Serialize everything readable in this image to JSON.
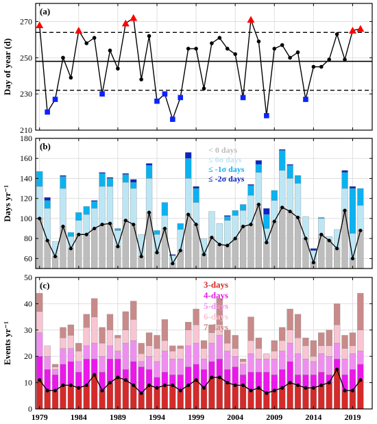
{
  "chart_data": [
    {
      "panel": "(a)",
      "type": "line",
      "ylabel": "Day of year (d)",
      "ylim": [
        210,
        280
      ],
      "yticks": [
        210,
        230,
        250,
        270
      ],
      "xlim": [
        1978.5,
        2021.5
      ],
      "x": [
        1979,
        1980,
        1981,
        1982,
        1983,
        1984,
        1985,
        1986,
        1987,
        1988,
        1989,
        1990,
        1991,
        1992,
        1993,
        1994,
        1995,
        1996,
        1997,
        1998,
        1999,
        2000,
        2001,
        2002,
        2003,
        2004,
        2005,
        2006,
        2007,
        2008,
        2009,
        2010,
        2011,
        2012,
        2013,
        2014,
        2015,
        2016,
        2017,
        2018,
        2019,
        2020
      ],
      "values": [
        268,
        220,
        227,
        250,
        239,
        265,
        258,
        261,
        230,
        254,
        244,
        269,
        272,
        238,
        262,
        226,
        230,
        216,
        228,
        255,
        255,
        233,
        258,
        261,
        255,
        252,
        228,
        271,
        259,
        218,
        255,
        257,
        250,
        253,
        227,
        245,
        245,
        249,
        263,
        249,
        265,
        266
      ],
      "mean": 248,
      "upper_bound": 264,
      "lower_bound": 232,
      "high_marker_years": [
        1979,
        1984,
        1990,
        1991,
        2006,
        2019,
        2020
      ],
      "low_marker_years": [
        1980,
        1981,
        1987,
        1994,
        1995,
        1996,
        1997,
        2005,
        2008,
        2013
      ],
      "colors": {
        "line": "#000000",
        "high": "#ff0000",
        "low": "#0b24fb"
      }
    },
    {
      "panel": "(b)",
      "type": "bar",
      "ylabel": "Days yr⁻¹",
      "ylim": [
        50,
        180
      ],
      "yticks": [
        60,
        80,
        100,
        120,
        140,
        160,
        180
      ],
      "series": [
        {
          "name": "< 0 days",
          "color": "#bdbdbd",
          "values": [
            100,
            78,
            62,
            92,
            70,
            84,
            84,
            90,
            94,
            95,
            72,
            98,
            94,
            62,
            106,
            66,
            90,
            55,
            68,
            104,
            94,
            64,
            81,
            74,
            73,
            80,
            92,
            94,
            114,
            76,
            97,
            111,
            107,
            101,
            80,
            56,
            84,
            78,
            70,
            108,
            60,
            88
          ]
        },
        {
          "name": "≤ 0σ days",
          "color": "#bde6f5",
          "values": [
            132,
            110,
            77,
            130,
            82,
            98,
            104,
            110,
            132,
            132,
            88,
            136,
            130,
            84,
            140,
            84,
            103,
            63,
            89,
            140,
            116,
            80,
            107,
            95,
            98,
            103,
            108,
            123,
            146,
            90,
            118,
            148,
            140,
            135,
            102,
            68,
            100,
            82,
            89,
            130,
            85,
            113
          ]
        },
        {
          "name": "≤ -1σ days",
          "color": "#0bb2f0",
          "values": [
            147,
            118,
            77,
            142,
            86,
            106,
            112,
            117,
            145,
            140,
            90,
            144,
            136,
            84,
            153,
            88,
            116,
            63,
            95,
            160,
            130,
            80,
            107,
            95,
            102,
            108,
            114,
            133,
            154,
            104,
            128,
            168,
            153,
            143,
            102,
            68,
            101,
            82,
            85,
            146,
            130,
            130
          ]
        },
        {
          "name": "≤ -2σ days",
          "color": "#0a23c8",
          "values": [
            147,
            121,
            77,
            143,
            86,
            106,
            112,
            118,
            146,
            141,
            90,
            145,
            139,
            84,
            155,
            88,
            116,
            64,
            95,
            166,
            132,
            80,
            107,
            95,
            103,
            108,
            114,
            134,
            158,
            110,
            128,
            169,
            154,
            143,
            102,
            70,
            101,
            82,
            86,
            148,
            132,
            130
          ]
        }
      ],
      "line_values": [
        100,
        78,
        62,
        92,
        70,
        84,
        84,
        90,
        94,
        95,
        72,
        98,
        94,
        62,
        106,
        66,
        90,
        55,
        68,
        104,
        94,
        64,
        81,
        74,
        73,
        80,
        92,
        94,
        114,
        76,
        97,
        111,
        107,
        101,
        80,
        56,
        84,
        78,
        70,
        108,
        60,
        88
      ],
      "legend": [
        "< 0 days",
        "≤ 0σ days",
        "≤ -1σ days",
        "≤ -2σ days"
      ],
      "legend_placement": "top-center"
    },
    {
      "panel": "(c)",
      "type": "bar",
      "ylabel": "Events yr⁻¹",
      "ylim": [
        0,
        50
      ],
      "yticks": [
        0,
        10,
        20,
        30,
        40,
        50
      ],
      "xticks": [
        "1979",
        "1984",
        "1989",
        "1994",
        "1999",
        "2004",
        "2009",
        "2014",
        "2019"
      ],
      "xtick_years": [
        1979,
        1984,
        1989,
        1994,
        1999,
        2004,
        2009,
        2014,
        2019
      ],
      "series": [
        {
          "name": "3-days",
          "color": "#d42a2a",
          "values": [
            11,
            7,
            7,
            9,
            9,
            8,
            9,
            13,
            7,
            10,
            12,
            11,
            9,
            6,
            9,
            8,
            9,
            9,
            7,
            9,
            11,
            8,
            12,
            12,
            10,
            9,
            9,
            7,
            8,
            6,
            7,
            8,
            10,
            9,
            8,
            8,
            9,
            10,
            15,
            7,
            7,
            11
          ]
        },
        {
          "name": "4-days",
          "color": "#ea18ea",
          "values": [
            20,
            15,
            13,
            17,
            18,
            14,
            19,
            19,
            14,
            19,
            19,
            15,
            18,
            16,
            15,
            12,
            14,
            13,
            13,
            16,
            17,
            15,
            18,
            19,
            15,
            16,
            13,
            14,
            14,
            14,
            13,
            15,
            18,
            13,
            13,
            13,
            14,
            13,
            19,
            13,
            15,
            17
          ]
        },
        {
          "name": "5-days",
          "color": "#f08ef0",
          "values": [
            29,
            20,
            15,
            23,
            23,
            18,
            24,
            25,
            20,
            24,
            22,
            25,
            26,
            18,
            20,
            18,
            22,
            19,
            19,
            24,
            25,
            19,
            25,
            28,
            22,
            20,
            17,
            21,
            19,
            19,
            19,
            22,
            25,
            21,
            19,
            18,
            21,
            20,
            25,
            19,
            21,
            22
          ]
        },
        {
          "name": "6-days",
          "color": "#f8c5d2",
          "values": [
            37,
            24,
            16,
            27,
            28,
            22,
            31,
            35,
            25,
            30,
            27,
            30,
            34,
            21,
            24,
            23,
            26,
            22,
            23,
            30,
            32,
            23,
            29,
            32,
            25,
            23,
            18,
            26,
            23,
            21,
            22,
            26,
            30,
            27,
            24,
            20,
            24,
            24,
            32,
            23,
            24,
            30
          ]
        },
        {
          "name": "7-days",
          "color": "#c98a8a",
          "values": [
            44,
            24,
            17,
            31,
            32,
            25,
            36,
            42,
            31,
            36,
            28,
            37,
            41,
            25,
            29,
            28,
            34,
            24,
            24,
            33,
            38,
            26,
            32,
            42,
            30,
            28,
            19,
            35,
            27,
            21,
            26,
            31,
            38,
            36,
            27,
            26,
            29,
            30,
            40,
            28,
            29,
            44
          ]
        }
      ],
      "line_values": [
        11,
        7,
        7,
        9,
        9,
        8,
        9,
        13,
        7,
        10,
        12,
        11,
        9,
        6,
        9,
        8,
        9,
        9,
        7,
        9,
        11,
        8,
        12,
        12,
        10,
        9,
        9,
        7,
        8,
        6,
        7,
        8,
        10,
        9,
        8,
        8,
        9,
        10,
        15,
        7,
        7,
        11
      ],
      "legend": [
        "3-days",
        "4-days",
        "5-days",
        "6-days",
        "7-days"
      ],
      "legend_placement": "top-center"
    }
  ]
}
